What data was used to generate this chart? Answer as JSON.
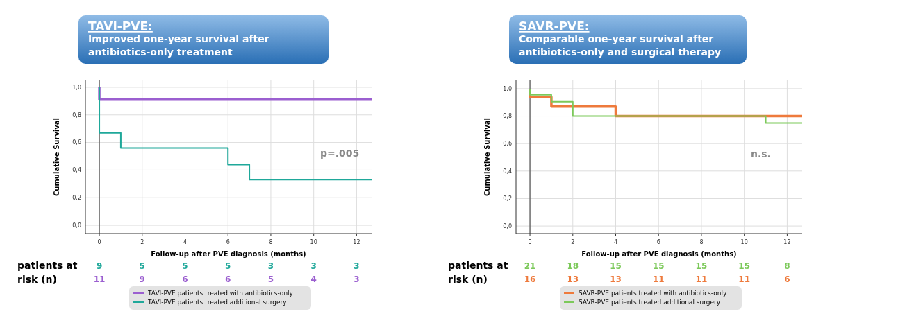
{
  "chart_data": [
    {
      "type": "step",
      "title": "TAVI-PVE:",
      "subtitle": "Improved one-year survival after antibiotics-only treatment",
      "xlabel": "Follow-up after PVE diagnosis (months)",
      "ylabel": "Cumulative Survival",
      "series": [
        {
          "name": "TAVI-PVE patients treated with antibiotics-only",
          "color": "#9b5fd0",
          "x": [
            0,
            0,
            12.7
          ],
          "values": [
            1,
            0.91,
            0.91
          ]
        },
        {
          "name": "TAVI-PVE patients treated additional surgery",
          "color": "#1fa89a",
          "x": [
            0,
            0,
            1,
            6,
            7,
            12.7
          ],
          "values": [
            1,
            0.67,
            0.56,
            0.44,
            0.33,
            0.33
          ]
        }
      ],
      "xlim": [
        -0.65,
        12.7
      ],
      "xticks": [
        0,
        2,
        4,
        6,
        8,
        10,
        12
      ],
      "ylim": [
        -0.06,
        1.05
      ],
      "yticks": [
        {
          "value": 0,
          "label": "0,0"
        },
        {
          "value": 0.2,
          "label": "0,2"
        },
        {
          "value": 0.4,
          "label": "0,4"
        },
        {
          "value": 0.6,
          "label": "0,6"
        },
        {
          "value": 0.8,
          "label": "0,8"
        },
        {
          "value": 1,
          "label": "1,0"
        }
      ],
      "ref_lines": [
        {
          "axis": "x",
          "value": 0,
          "color": "#333333"
        }
      ],
      "grid": true,
      "legend": "bottom",
      "annotations": [
        "p=.005",
        "patients at",
        "risk (n)",
        "9",
        "5",
        "5",
        "5",
        "3",
        "3",
        "3",
        "11",
        "9",
        "6",
        "6",
        "5",
        "4",
        "3"
      ]
    },
    {
      "type": "step",
      "title": "SAVR-PVE:",
      "subtitle": "Comparable one-year survival after antibiotics-only and surgical therapy",
      "xlabel": "Follow-up after PVE diagnosis (months)",
      "ylabel": "Cumulative Survival",
      "series": [
        {
          "name": "SAVR-PVE patients treated with antibiotics-only",
          "color": "#ee7a3c",
          "x": [
            0,
            0,
            1,
            4,
            12.7
          ],
          "values": [
            1,
            0.94,
            0.87,
            0.8,
            0.8
          ]
        },
        {
          "name": "SAVR-PVE patients treated additional surgery",
          "color": "#7cc95a",
          "x": [
            0,
            0,
            1,
            2,
            11,
            12.7
          ],
          "values": [
            1,
            0.955,
            0.905,
            0.8,
            0.75,
            0.75
          ]
        }
      ],
      "xlim": [
        -0.65,
        12.7
      ],
      "xticks": [
        0,
        2,
        4,
        6,
        8,
        10,
        12
      ],
      "ylim": [
        -0.055,
        1.06
      ],
      "yticks": [
        {
          "value": 0,
          "label": "0,0"
        },
        {
          "value": 0.2,
          "label": "0,2"
        },
        {
          "value": 0.4,
          "label": "0,4"
        },
        {
          "value": 0.6,
          "label": "0,6"
        },
        {
          "value": 0.8,
          "label": "0,8"
        },
        {
          "value": 1,
          "label": "1,0"
        }
      ],
      "ref_lines": [
        {
          "axis": "x",
          "value": 0,
          "color": "#333333"
        }
      ],
      "grid": true,
      "legend": "bottom",
      "annotations": [
        "n.s.",
        "patients at",
        "risk (n)",
        "21",
        "18",
        "15",
        "15",
        "15",
        "15",
        "8",
        "16",
        "13",
        "13",
        "11",
        "11",
        "11",
        "6"
      ]
    }
  ]
}
